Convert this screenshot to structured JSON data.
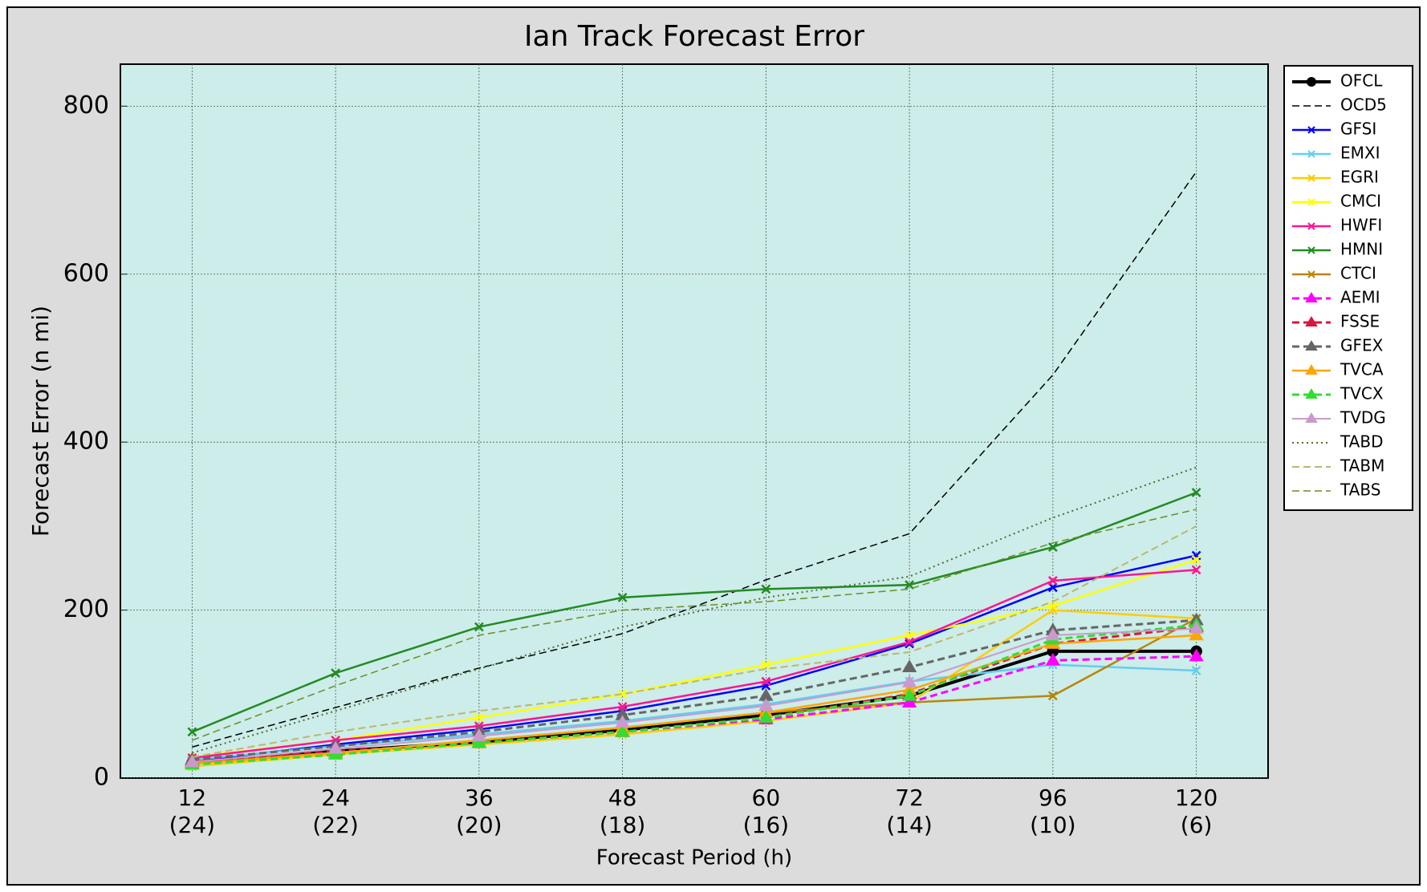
{
  "chart_data": {
    "type": "line",
    "title": "Ian Track Forecast Error",
    "x_label": "Forecast Period (h)",
    "y_label": "Forecast Error (n mi)",
    "categories": [
      "12",
      "24",
      "36",
      "48",
      "60",
      "72",
      "96",
      "120"
    ],
    "case_counts": [
      "(24)",
      "(22)",
      "(20)",
      "(18)",
      "(16)",
      "(14)",
      "(10)",
      "(6)"
    ],
    "ylim": [
      0,
      850
    ],
    "yticks": [
      0,
      200,
      400,
      600,
      800
    ],
    "grid": true,
    "legend": "upper right",
    "series": [
      {
        "name": "OFCL",
        "color": "#000000",
        "marker": "o",
        "dash": "solid",
        "width": 4,
        "values": [
          18,
          32,
          43,
          57,
          75,
          98,
          151,
          151
        ]
      },
      {
        "name": "OCD5",
        "color": "#000000",
        "marker": "none",
        "dash": "dashed",
        "width": 1.5,
        "values": [
          37,
          84,
          131,
          172,
          236,
          291,
          480,
          722
        ]
      },
      {
        "name": "GFSI",
        "color": "#0000ff",
        "marker": "x",
        "dash": "solid",
        "width": 2.5,
        "values": [
          20,
          40,
          58,
          80,
          110,
          160,
          227,
          265
        ]
      },
      {
        "name": "EMXI",
        "color": "#66ccee",
        "marker": "x",
        "dash": "solid",
        "width": 2.5,
        "values": [
          22,
          38,
          52,
          68,
          88,
          115,
          135,
          128
        ]
      },
      {
        "name": "EGRI",
        "color": "#ffcc00",
        "marker": "x",
        "dash": "solid",
        "width": 2.5,
        "values": [
          14,
          28,
          40,
          52,
          68,
          90,
          200,
          190
        ]
      },
      {
        "name": "CMCI",
        "color": "#ffff00",
        "marker": "x",
        "dash": "solid",
        "width": 2.5,
        "values": [
          25,
          45,
          72,
          100,
          135,
          170,
          205,
          260
        ]
      },
      {
        "name": "HWFI",
        "color": "#ff1493",
        "marker": "x",
        "dash": "solid",
        "width": 2.5,
        "values": [
          24,
          45,
          62,
          85,
          115,
          162,
          235,
          248
        ]
      },
      {
        "name": "HMNI",
        "color": "#228b22",
        "marker": "x",
        "dash": "solid",
        "width": 2.5,
        "values": [
          55,
          125,
          180,
          215,
          225,
          230,
          275,
          340
        ]
      },
      {
        "name": "CTCI",
        "color": "#b8860b",
        "marker": "x",
        "dash": "solid",
        "width": 2.5,
        "values": [
          20,
          30,
          45,
          60,
          78,
          90,
          98,
          190
        ]
      },
      {
        "name": "AEMI",
        "color": "#ff00ff",
        "marker": "^",
        "dash": "dashed",
        "width": 3,
        "values": [
          20,
          30,
          42,
          55,
          70,
          90,
          140,
          145
        ]
      },
      {
        "name": "FSSE",
        "color": "#dc143c",
        "marker": "^",
        "dash": "dashed",
        "width": 3,
        "values": [
          18,
          32,
          42,
          55,
          72,
          100,
          160,
          180
        ]
      },
      {
        "name": "GFEX",
        "color": "#666666",
        "marker": "^",
        "dash": "dashed",
        "width": 3,
        "values": [
          22,
          38,
          55,
          75,
          98,
          132,
          176,
          188
        ]
      },
      {
        "name": "TVCA",
        "color": "#ffa500",
        "marker": "^",
        "dash": "solid",
        "width": 2.5,
        "values": [
          17,
          30,
          45,
          60,
          78,
          105,
          160,
          170
        ]
      },
      {
        "name": "TVCX",
        "color": "#33dd33",
        "marker": "^",
        "dash": "dashed",
        "width": 3,
        "values": [
          16,
          28,
          42,
          55,
          72,
          98,
          165,
          182
        ]
      },
      {
        "name": "TVDG",
        "color": "#cc99cc",
        "marker": "^",
        "dash": "solid",
        "width": 2,
        "values": [
          19,
          35,
          50,
          66,
          86,
          114,
          170,
          178
        ]
      },
      {
        "name": "TABD",
        "color": "#556b2f",
        "marker": "none",
        "dash": "dotted",
        "width": 2,
        "values": [
          30,
          80,
          130,
          180,
          215,
          240,
          310,
          370
        ]
      },
      {
        "name": "TABM",
        "color": "#bdb76b",
        "marker": "none",
        "dash": "dashed",
        "width": 2,
        "values": [
          25,
          55,
          80,
          100,
          130,
          150,
          210,
          300
        ]
      },
      {
        "name": "TABS",
        "color": "#6b8e23",
        "marker": "none",
        "dash": "dashed",
        "width": 1.5,
        "values": [
          45,
          110,
          170,
          200,
          210,
          225,
          280,
          320
        ]
      }
    ]
  }
}
